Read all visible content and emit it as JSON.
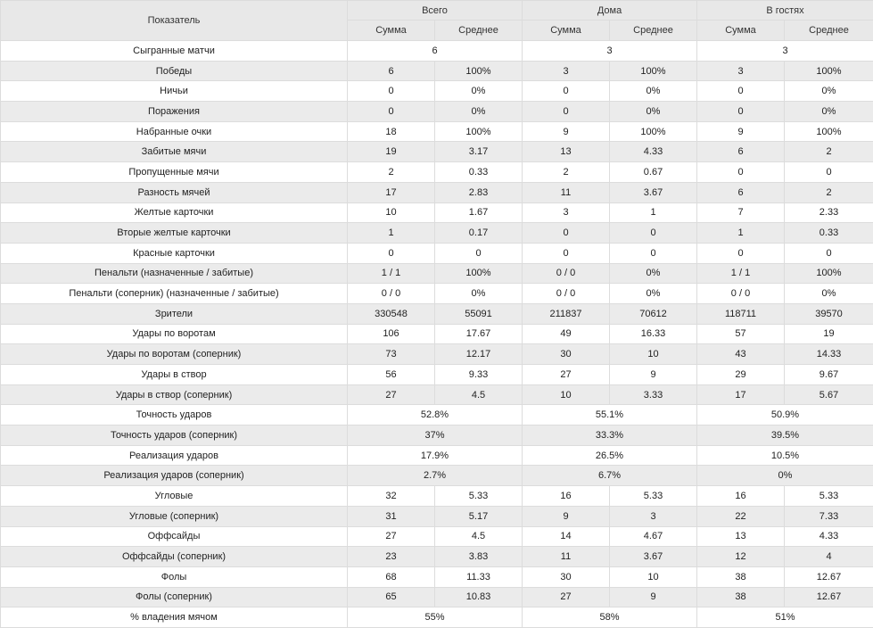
{
  "header": {
    "indicator": "Показатель",
    "groups": [
      "Всего",
      "Дома",
      "В гостях"
    ],
    "sub": [
      "Сумма",
      "Среднее"
    ]
  },
  "rows": [
    {
      "label": "Сыгранные матчи",
      "merged": true,
      "values": [
        "6",
        "3",
        "3"
      ]
    },
    {
      "label": "Победы",
      "values": [
        "6",
        "100%",
        "3",
        "100%",
        "3",
        "100%"
      ]
    },
    {
      "label": "Ничьи",
      "values": [
        "0",
        "0%",
        "0",
        "0%",
        "0",
        "0%"
      ]
    },
    {
      "label": "Поражения",
      "values": [
        "0",
        "0%",
        "0",
        "0%",
        "0",
        "0%"
      ]
    },
    {
      "label": "Набранные очки",
      "values": [
        "18",
        "100%",
        "9",
        "100%",
        "9",
        "100%"
      ]
    },
    {
      "label": "Забитые мячи",
      "values": [
        "19",
        "3.17",
        "13",
        "4.33",
        "6",
        "2"
      ]
    },
    {
      "label": "Пропущенные мячи",
      "values": [
        "2",
        "0.33",
        "2",
        "0.67",
        "0",
        "0"
      ]
    },
    {
      "label": "Разность мячей",
      "values": [
        "17",
        "2.83",
        "11",
        "3.67",
        "6",
        "2"
      ]
    },
    {
      "label": "Желтые карточки",
      "values": [
        "10",
        "1.67",
        "3",
        "1",
        "7",
        "2.33"
      ]
    },
    {
      "label": "Вторые желтые карточки",
      "values": [
        "1",
        "0.17",
        "0",
        "0",
        "1",
        "0.33"
      ]
    },
    {
      "label": "Красные карточки",
      "values": [
        "0",
        "0",
        "0",
        "0",
        "0",
        "0"
      ]
    },
    {
      "label": "Пенальти (назначенные / забитые)",
      "values": [
        "1 / 1",
        "100%",
        "0 / 0",
        "0%",
        "1 / 1",
        "100%"
      ]
    },
    {
      "label": "Пенальти (соперник) (назначенные / забитые)",
      "values": [
        "0 / 0",
        "0%",
        "0 / 0",
        "0%",
        "0 / 0",
        "0%"
      ]
    },
    {
      "label": "Зрители",
      "values": [
        "330548",
        "55091",
        "211837",
        "70612",
        "118711",
        "39570"
      ]
    },
    {
      "label": "Удары по воротам",
      "values": [
        "106",
        "17.67",
        "49",
        "16.33",
        "57",
        "19"
      ]
    },
    {
      "label": "Удары по воротам (соперник)",
      "values": [
        "73",
        "12.17",
        "30",
        "10",
        "43",
        "14.33"
      ]
    },
    {
      "label": "Удары в створ",
      "values": [
        "56",
        "9.33",
        "27",
        "9",
        "29",
        "9.67"
      ]
    },
    {
      "label": "Удары в створ (соперник)",
      "values": [
        "27",
        "4.5",
        "10",
        "3.33",
        "17",
        "5.67"
      ]
    },
    {
      "label": "Точность ударов",
      "merged": true,
      "values": [
        "52.8%",
        "55.1%",
        "50.9%"
      ]
    },
    {
      "label": "Точность ударов (соперник)",
      "merged": true,
      "values": [
        "37%",
        "33.3%",
        "39.5%"
      ]
    },
    {
      "label": "Реализация ударов",
      "merged": true,
      "values": [
        "17.9%",
        "26.5%",
        "10.5%"
      ]
    },
    {
      "label": "Реализация ударов (соперник)",
      "merged": true,
      "values": [
        "2.7%",
        "6.7%",
        "0%"
      ]
    },
    {
      "label": "Угловые",
      "values": [
        "32",
        "5.33",
        "16",
        "5.33",
        "16",
        "5.33"
      ]
    },
    {
      "label": "Угловые (соперник)",
      "values": [
        "31",
        "5.17",
        "9",
        "3",
        "22",
        "7.33"
      ]
    },
    {
      "label": "Оффсайды",
      "values": [
        "27",
        "4.5",
        "14",
        "4.67",
        "13",
        "4.33"
      ]
    },
    {
      "label": "Оффсайды (соперник)",
      "values": [
        "23",
        "3.83",
        "11",
        "3.67",
        "12",
        "4"
      ]
    },
    {
      "label": "Фолы",
      "values": [
        "68",
        "11.33",
        "30",
        "10",
        "38",
        "12.67"
      ]
    },
    {
      "label": "Фолы (соперник)",
      "values": [
        "65",
        "10.83",
        "27",
        "9",
        "38",
        "12.67"
      ]
    },
    {
      "label": "% владения мячом",
      "merged": true,
      "values": [
        "55%",
        "58%",
        "51%"
      ]
    }
  ]
}
